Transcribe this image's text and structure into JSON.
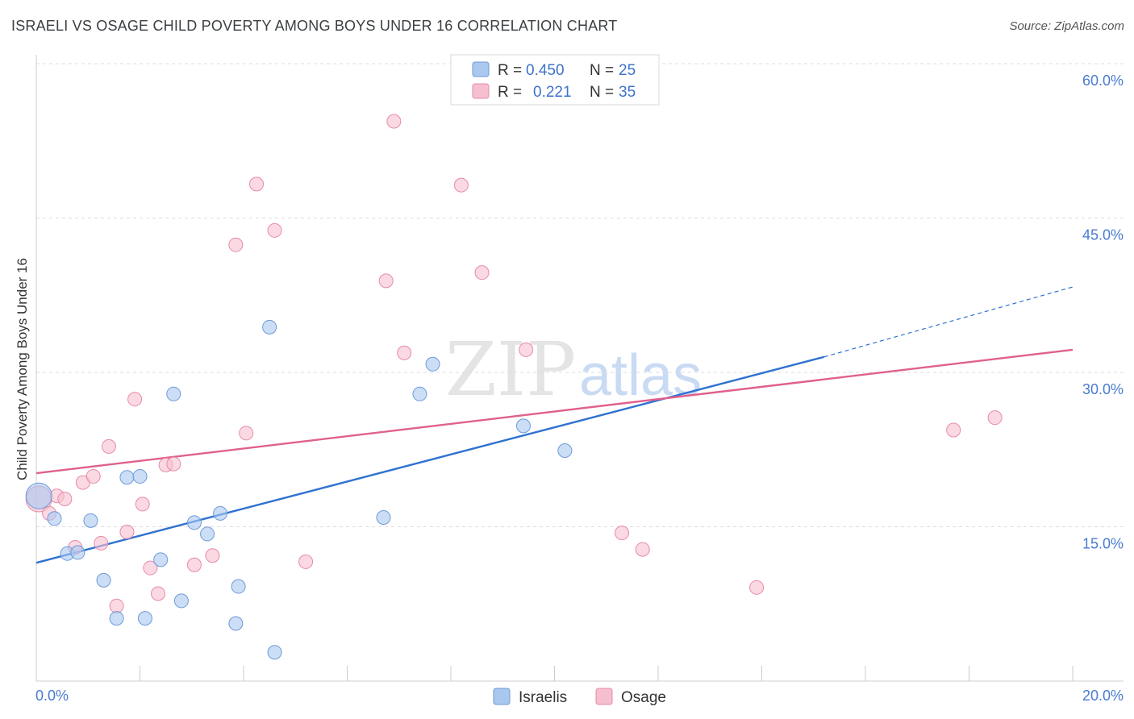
{
  "header": {
    "title": "ISRAELI VS OSAGE CHILD POVERTY AMONG BOYS UNDER 16 CORRELATION CHART",
    "source": "Source: ZipAtlas.com"
  },
  "watermark": {
    "zip": "ZIP",
    "atlas": "atlas"
  },
  "legend_top": [
    {
      "r_label": "R =",
      "r_value": "0.450",
      "n_label": "N =",
      "n_value": "25"
    },
    {
      "r_label": "R =",
      "r_value": "0.221",
      "n_label": "N =",
      "n_value": "35"
    }
  ],
  "legend_bottom": [
    "Israelis",
    "Osage"
  ],
  "chart_data": {
    "type": "scatter",
    "title": "ISRAELI VS OSAGE CHILD POVERTY AMONG BOYS UNDER 16 CORRELATION CHART",
    "xlabel": "",
    "ylabel": "Child Poverty Among Boys Under 16",
    "xlim": [
      0,
      20
    ],
    "ylim": [
      0,
      60
    ],
    "x_tick_labels": [
      "0.0%",
      "20.0%"
    ],
    "y_ticks": [
      15,
      30,
      45,
      60
    ],
    "y_tick_labels": [
      "15.0%",
      "30.0%",
      "45.0%",
      "60.0%"
    ],
    "grid": true,
    "legend_position": "top-center",
    "colors": {
      "israelis_fill": "#a9c8f0",
      "israelis_stroke": "#6f9ad8",
      "israelis_line": "#2f72d0",
      "osage_fill": "#f6bfd0",
      "osage_stroke": "#e88aa8",
      "osage_line": "#e0608c",
      "tick_text": "#4a7bd0",
      "grid": "#dddddd"
    },
    "series": [
      {
        "name": "Israelis",
        "r": 0.45,
        "n": 25,
        "trend": {
          "x0": 0,
          "y0": 11.5,
          "x1": 15.2,
          "y1": 31.5,
          "dash_x1": 20,
          "dash_y1": 38.3
        },
        "points": [
          {
            "x": 0.05,
            "y": 18.0,
            "big": true
          },
          {
            "x": 0.35,
            "y": 15.8
          },
          {
            "x": 0.6,
            "y": 12.4
          },
          {
            "x": 0.8,
            "y": 12.5
          },
          {
            "x": 1.05,
            "y": 15.6
          },
          {
            "x": 1.3,
            "y": 9.8
          },
          {
            "x": 1.55,
            "y": 6.1
          },
          {
            "x": 1.75,
            "y": 19.8
          },
          {
            "x": 2.0,
            "y": 19.9
          },
          {
            "x": 2.1,
            "y": 6.1
          },
          {
            "x": 2.4,
            "y": 11.8
          },
          {
            "x": 2.65,
            "y": 27.9
          },
          {
            "x": 2.8,
            "y": 7.8
          },
          {
            "x": 3.05,
            "y": 15.4
          },
          {
            "x": 3.3,
            "y": 14.3
          },
          {
            "x": 3.55,
            "y": 16.3
          },
          {
            "x": 3.85,
            "y": 5.6
          },
          {
            "x": 3.9,
            "y": 9.2
          },
          {
            "x": 4.5,
            "y": 34.4
          },
          {
            "x": 4.6,
            "y": 2.8
          },
          {
            "x": 6.7,
            "y": 15.9
          },
          {
            "x": 7.4,
            "y": 27.9
          },
          {
            "x": 7.65,
            "y": 30.8
          },
          {
            "x": 9.4,
            "y": 24.8
          },
          {
            "x": 10.2,
            "y": 22.4
          }
        ]
      },
      {
        "name": "Osage",
        "r": 0.221,
        "n": 35,
        "trend": {
          "x0": 0,
          "y0": 20.2,
          "x1": 20,
          "y1": 32.2
        },
        "points": [
          {
            "x": 0.05,
            "y": 17.7,
            "big": true
          },
          {
            "x": 0.25,
            "y": 16.3
          },
          {
            "x": 0.4,
            "y": 18.0
          },
          {
            "x": 0.55,
            "y": 17.7
          },
          {
            "x": 0.75,
            "y": 13.0
          },
          {
            "x": 0.9,
            "y": 19.3
          },
          {
            "x": 1.1,
            "y": 19.9
          },
          {
            "x": 1.25,
            "y": 13.4
          },
          {
            "x": 1.4,
            "y": 22.8
          },
          {
            "x": 1.55,
            "y": 7.3
          },
          {
            "x": 1.75,
            "y": 14.5
          },
          {
            "x": 1.9,
            "y": 27.4
          },
          {
            "x": 2.05,
            "y": 17.2
          },
          {
            "x": 2.2,
            "y": 11.0
          },
          {
            "x": 2.35,
            "y": 8.5
          },
          {
            "x": 2.5,
            "y": 21.0
          },
          {
            "x": 2.65,
            "y": 21.1
          },
          {
            "x": 3.05,
            "y": 11.3
          },
          {
            "x": 3.4,
            "y": 12.2
          },
          {
            "x": 3.85,
            "y": 42.4
          },
          {
            "x": 4.05,
            "y": 24.1
          },
          {
            "x": 4.25,
            "y": 48.3
          },
          {
            "x": 4.6,
            "y": 43.8
          },
          {
            "x": 5.2,
            "y": 11.6
          },
          {
            "x": 6.75,
            "y": 38.9
          },
          {
            "x": 6.9,
            "y": 54.4
          },
          {
            "x": 7.1,
            "y": 31.9
          },
          {
            "x": 8.2,
            "y": 48.2
          },
          {
            "x": 8.6,
            "y": 39.7
          },
          {
            "x": 9.45,
            "y": 32.2
          },
          {
            "x": 11.3,
            "y": 14.4
          },
          {
            "x": 11.7,
            "y": 12.8
          },
          {
            "x": 13.9,
            "y": 9.1
          },
          {
            "x": 17.7,
            "y": 24.4
          },
          {
            "x": 18.5,
            "y": 25.6
          }
        ]
      }
    ]
  }
}
